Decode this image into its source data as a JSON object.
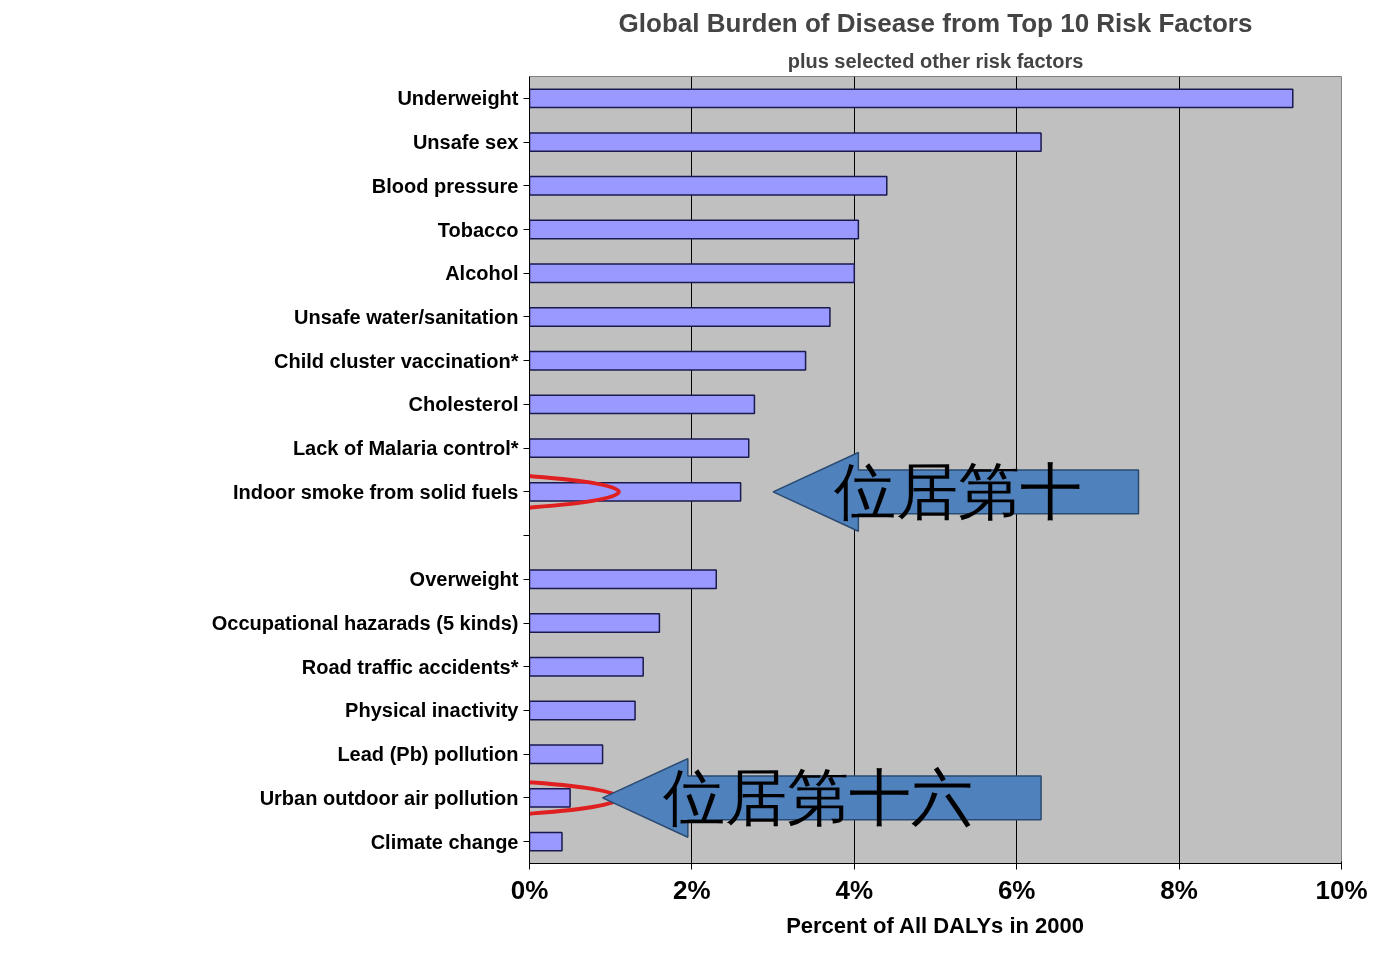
{
  "chart_data": {
    "type": "bar",
    "orientation": "horizontal",
    "title": "Global Burden of Disease from Top 10 Risk Factors",
    "subtitle": "plus selected other risk factors",
    "xlabel": "Percent of All DALYs in 2000",
    "categories": [
      "Underweight",
      "Unsafe sex",
      "Blood pressure",
      "Tobacco",
      "Alcohol",
      "Unsafe water/sanitation",
      "Child cluster vaccination*",
      "Cholesterol",
      "Lack of Malaria control*",
      "Indoor smoke from solid fuels",
      null,
      "Overweight",
      "Occupational hazarads (5 kinds)",
      "Road traffic accidents*",
      "Physical inactivity",
      "Lead (Pb) pollution",
      "Urban outdoor air pollution",
      "Climate change"
    ],
    "values": [
      9.4,
      6.3,
      4.4,
      4.05,
      4.0,
      3.7,
      3.4,
      2.77,
      2.7,
      2.6,
      null,
      2.3,
      1.6,
      1.4,
      1.3,
      0.9,
      0.5,
      0.4
    ],
    "color": "#9999ff",
    "xlim": [
      0,
      10
    ],
    "xticks": [
      {
        "value": 0,
        "label": "0%"
      },
      {
        "value": 2,
        "label": "2%"
      },
      {
        "value": 4,
        "label": "4%"
      },
      {
        "value": 6,
        "label": "6%"
      },
      {
        "value": 8,
        "label": "8%"
      },
      {
        "value": 10,
        "label": "10%"
      }
    ],
    "grid": "x",
    "annotations": [
      {
        "text": "位居第十",
        "x": 2.6,
        "y": "Indoor smoke from solid fuels"
      },
      {
        "text": "位居第十六",
        "x": 0.5,
        "y": "Urban outdoor air pollution"
      }
    ]
  }
}
